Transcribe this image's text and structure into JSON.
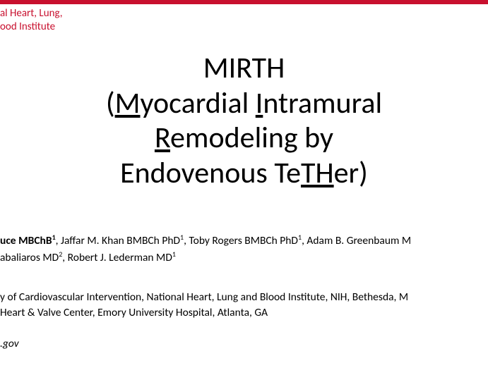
{
  "colors": {
    "red_bar": "#c8102e",
    "logo_text": "#c8102e",
    "background": "#ffffff",
    "text": "#000000"
  },
  "logo": {
    "line1": "al Heart, Lung,",
    "line2": "ood Institute"
  },
  "title": {
    "line1": {
      "text": "MIRTH"
    },
    "line2": {
      "open": "(",
      "u1": "M",
      "t1": "yocardial ",
      "u2": "I",
      "t2": "ntramural"
    },
    "line3": {
      "u1": "R",
      "t1": "emodeling by"
    },
    "line4": {
      "t1": "Endovenous Te",
      "u1": "TH",
      "t2": "er)",
      "close": ""
    },
    "font_size_pt": 32
  },
  "authors": {
    "row1": {
      "lead": "uce MBChB",
      "sup1": "1",
      "rest": ", Jaffar M. Khan BMBCh PhD",
      "sup2": "1",
      "rest2": ", Toby Rogers BMBCh PhD",
      "sup3": "1",
      "rest3": ", Adam B. Greenbaum M"
    },
    "row2": {
      "t1": "abaliaros MD",
      "sup1": "2",
      "t2": ", Robert J. Lederman MD",
      "sup2": "1"
    }
  },
  "affil": {
    "row1": "y of Cardiovascular Intervention, National Heart, Lung and Blood Institute, NIH, Bethesda, M",
    "row2": " Heart & Valve Center, Emory University Hospital, Atlanta, GA"
  },
  "email": ".gov"
}
